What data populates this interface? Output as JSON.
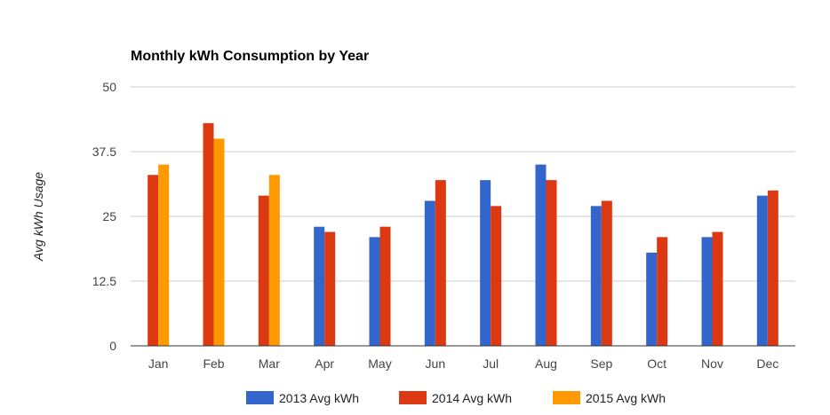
{
  "chart_data": {
    "type": "bar",
    "title": "Monthly kWh Consumption by Year",
    "xlabel": "",
    "ylabel": "Avg kWh Usage",
    "ylim": [
      0,
      50
    ],
    "yticks": [
      "0",
      "12.5",
      "25",
      "37.5",
      "50"
    ],
    "grid": true,
    "legend_position": "bottom",
    "categories": [
      "Jan",
      "Feb",
      "Mar",
      "Apr",
      "May",
      "Jun",
      "Jul",
      "Aug",
      "Sep",
      "Oct",
      "Nov",
      "Dec"
    ],
    "series": [
      {
        "name": "2013 Avg kWh",
        "color": "#3366cc",
        "values": [
          null,
          null,
          null,
          23,
          21,
          28,
          32,
          35,
          27,
          18,
          21,
          29
        ]
      },
      {
        "name": "2014 Avg kWh",
        "color": "#dc3912",
        "values": [
          33,
          43,
          29,
          22,
          23,
          32,
          27,
          32,
          28,
          21,
          22,
          30
        ]
      },
      {
        "name": "2015 Avg kWh",
        "color": "#ff9900",
        "values": [
          35,
          40,
          33,
          null,
          null,
          null,
          null,
          null,
          null,
          null,
          null,
          null
        ]
      }
    ]
  }
}
